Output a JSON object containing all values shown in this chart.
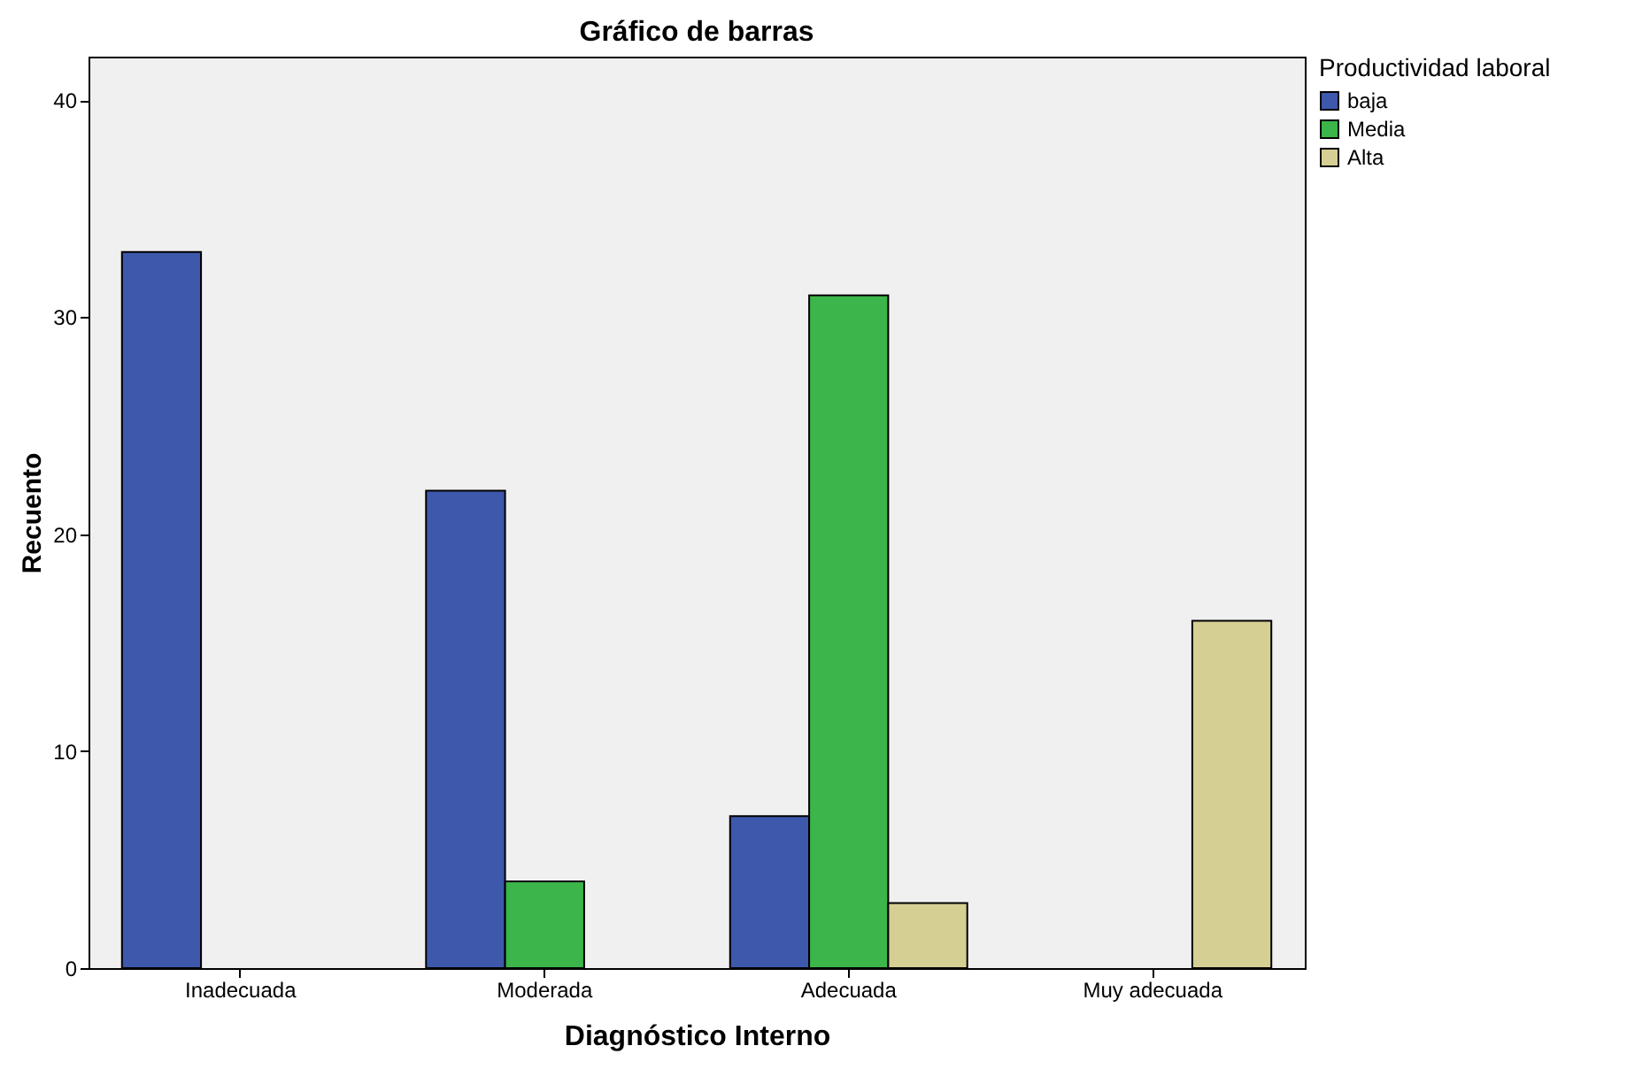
{
  "chart_data": {
    "type": "bar",
    "title": "Gráfico de barras",
    "xlabel": "Diagnóstico Interno",
    "ylabel": "Recuento",
    "legend_title": "Productividad laboral",
    "categories": [
      "Inadecuada",
      "Moderada",
      "Adecuada",
      "Muy adecuada"
    ],
    "series": [
      {
        "name": "baja",
        "color": "#3e58ac",
        "values": [
          33,
          22,
          7,
          null
        ]
      },
      {
        "name": "Media",
        "color": "#3cb54a",
        "values": [
          null,
          4,
          31,
          null
        ]
      },
      {
        "name": "Alta",
        "color": "#d5cf94",
        "values": [
          null,
          null,
          3,
          16
        ]
      }
    ],
    "ylim": [
      0,
      42
    ],
    "yticks": [
      0,
      10,
      20,
      30,
      40
    ],
    "grid": false,
    "legend": "top right"
  }
}
